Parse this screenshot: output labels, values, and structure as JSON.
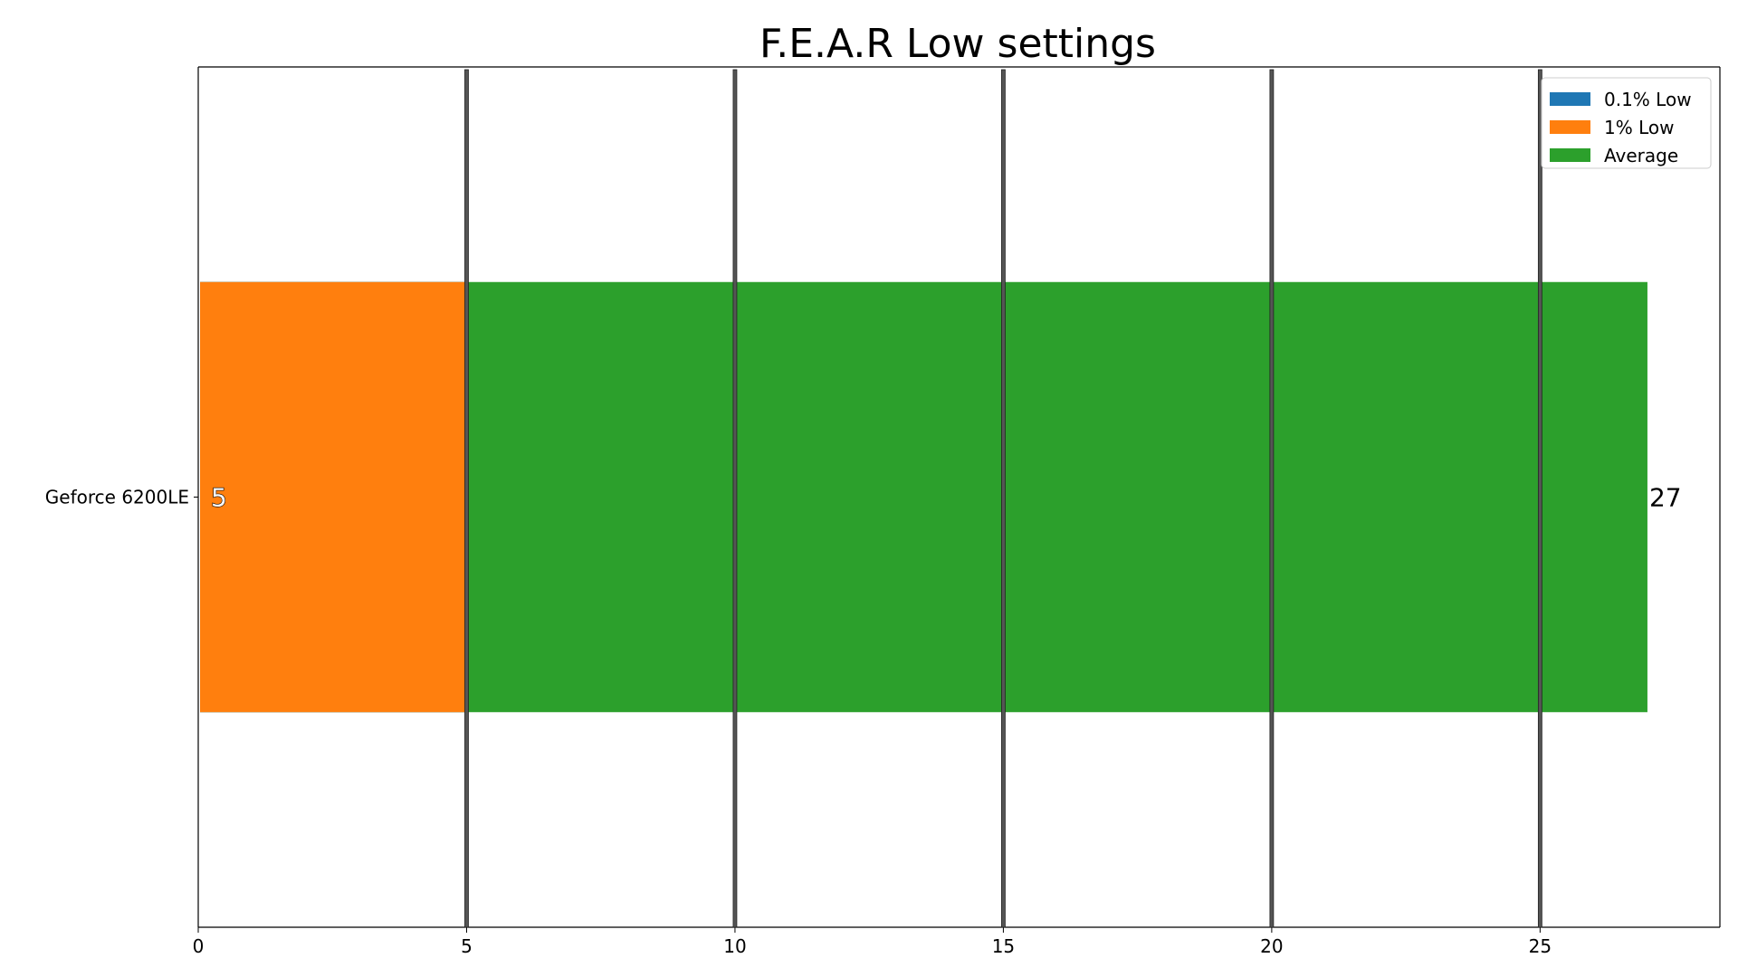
{
  "chart_data": {
    "type": "bar",
    "orientation": "horizontal",
    "title": "F.E.A.R Low settings",
    "xlabel": "",
    "ylabel": "",
    "categories": [
      "Geforce 6200LE"
    ],
    "series": [
      {
        "name": "0.1% Low",
        "values": [
          5
        ],
        "color": "#1f77b4"
      },
      {
        "name": "1% Low",
        "values": [
          5
        ],
        "color": "#ff7f0e"
      },
      {
        "name": "Average",
        "values": [
          27
        ],
        "color": "#2ca02c"
      }
    ],
    "data_labels": [
      {
        "series": "0.1% Low",
        "value": 5,
        "text": "5"
      },
      {
        "series": "Average",
        "value": 27,
        "text": "27"
      }
    ],
    "xlim": [
      0,
      28.35
    ],
    "xticks": [
      0,
      5,
      10,
      15,
      20,
      25
    ],
    "xtick_labels": [
      "0",
      "5",
      "10",
      "15",
      "20",
      "25"
    ],
    "grid": "vertical",
    "grid_color": "#555555",
    "legend_position": "top-right"
  }
}
